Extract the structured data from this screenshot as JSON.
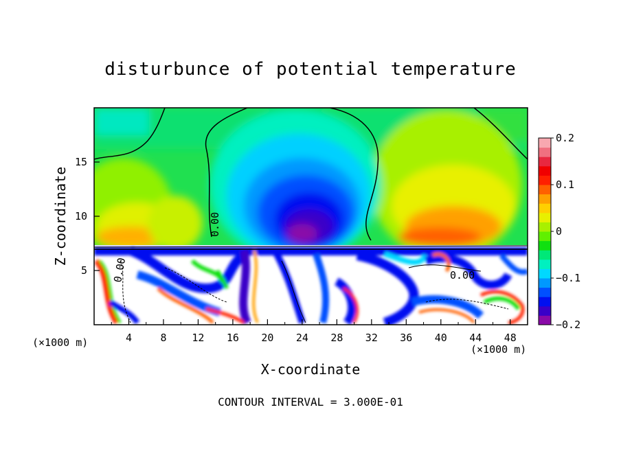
{
  "chart_data": {
    "type": "heatmap",
    "title": "disturbunce of potential temperature",
    "xlabel": "X-coordinate",
    "ylabel": "Z-coordinate",
    "x_unit": "(×1000 m)",
    "z_unit": "(×1000 m)",
    "xlim": [
      0,
      50
    ],
    "ylim": [
      0,
      20
    ],
    "x_ticks": [
      "4",
      "8",
      "12",
      "16",
      "20",
      "24",
      "28",
      "32",
      "36",
      "40",
      "44",
      "48"
    ],
    "y_ticks": [
      "5",
      "10",
      "15"
    ],
    "colorbar": {
      "range": [
        -0.2,
        0.2
      ],
      "tick_labels": [
        "0.2",
        "0.1",
        "0",
        "−0.1",
        "−0.2"
      ],
      "colors": [
        "#8a0aa8",
        "#3a00c8",
        "#0010f0",
        "#0050ff",
        "#0098ff",
        "#00d8ff",
        "#00f0c0",
        "#00e878",
        "#10e010",
        "#60f000",
        "#a8f000",
        "#e8f000",
        "#ffd000",
        "#ffa000",
        "#ff6000",
        "#ff2000",
        "#f00000",
        "#e82840",
        "#f07080",
        "#f8a8b0"
      ]
    },
    "contour_labels": [
      "0.00",
      "0.00",
      "0.00"
    ],
    "footer": "CONTOUR INTERVAL = 3.000E-01"
  }
}
